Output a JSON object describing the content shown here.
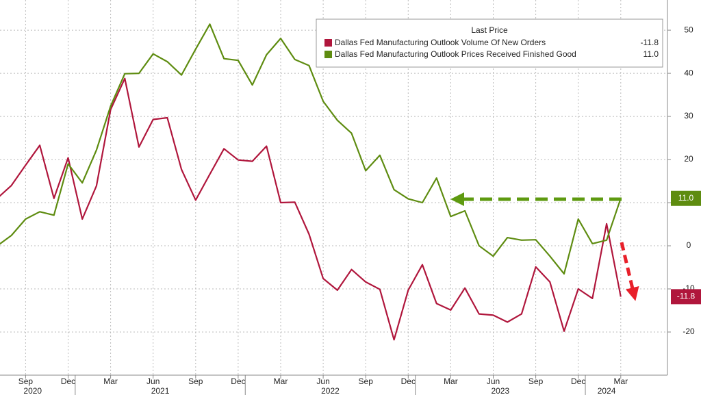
{
  "chart_data": {
    "type": "line",
    "legend_title": "Last Price",
    "categories": [
      null,
      null,
      "Sep",
      null,
      null,
      "Dec",
      null,
      null,
      "Mar",
      null,
      null,
      "Jun",
      null,
      null,
      "Sep",
      null,
      null,
      "Dec",
      null,
      null,
      "Mar",
      null,
      null,
      "Jun",
      null,
      null,
      "Sep",
      null,
      null,
      "Dec",
      null,
      null,
      "Mar",
      null,
      null,
      "Jun",
      null,
      null,
      "Sep",
      null,
      null,
      "Dec",
      null,
      null,
      "Mar"
    ],
    "year_groups": [
      {
        "label": "2020",
        "from": 0,
        "to": 5
      },
      {
        "label": "2021",
        "from": 6,
        "to": 17
      },
      {
        "label": "2022",
        "from": 18,
        "to": 29
      },
      {
        "label": "2023",
        "from": 30,
        "to": 41
      },
      {
        "label": "2024",
        "from": 42,
        "to": 44
      }
    ],
    "series": [
      {
        "name": "Dallas Fed Manufacturing Outlook Volume Of New Orders",
        "color": "#b0163c",
        "last_value": -11.8,
        "last_value_label": "-11.8",
        "values": [
          11,
          14,
          18.7,
          23.3,
          11,
          20.4,
          6.2,
          13.9,
          31.6,
          38.8,
          22.9,
          29.3,
          29.7,
          17.7,
          10.6,
          16.6,
          22.5,
          19.9,
          19.6,
          23.1,
          10,
          10.1,
          2.7,
          -7.6,
          -10.3,
          -5.5,
          -8.4,
          -10.1,
          -21.8,
          -10.3,
          -4.4,
          -13.4,
          -14.9,
          -9.8,
          -15.8,
          -16.1,
          -17.7,
          -15.8,
          -4.9,
          -8.4,
          -19.8,
          -10,
          -12.2,
          5.1,
          -11.8
        ]
      },
      {
        "name": "Dallas Fed Manufacturing Outlook Prices Received Finished Good",
        "color": "#5e8c10",
        "last_value": 11.0,
        "last_value_label": "11.0",
        "values": [
          0,
          2.4,
          6.2,
          7.9,
          7.1,
          19,
          14.6,
          22.2,
          32.4,
          39.9,
          40,
          44.5,
          42.7,
          39.6,
          45.6,
          51.4,
          43.4,
          43,
          37.3,
          44.3,
          48.1,
          43.2,
          41.8,
          33.5,
          29.1,
          26.1,
          17.4,
          21,
          13,
          10.9,
          10,
          15.7,
          6.8,
          8.1,
          0,
          -2.4,
          1.9,
          1.3,
          1.4,
          -2.4,
          -6.5,
          6.2,
          0.5,
          1.3,
          11
        ]
      }
    ],
    "ylim": [
      -30,
      57
    ],
    "yticks": [
      -20,
      -10,
      0,
      10,
      20,
      30,
      40,
      50
    ],
    "grid": true
  }
}
